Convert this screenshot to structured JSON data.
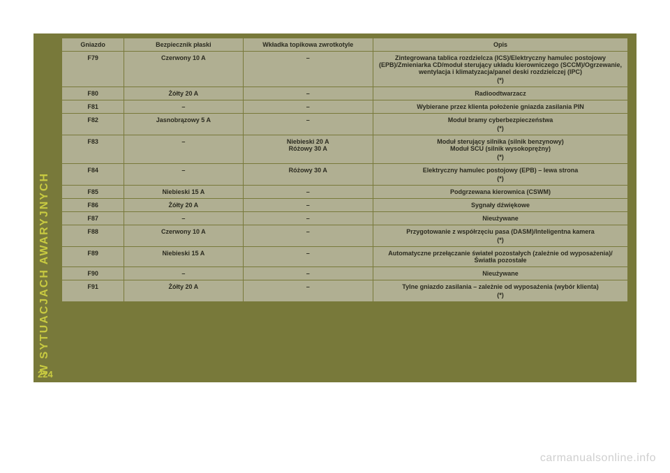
{
  "sidebar_label": "W SYTUACJACH AWARYJNYCH",
  "page_number": "224",
  "footer": "carmanualsonline.info",
  "colors": {
    "frame_bg": "#78793a",
    "table_bg": "#b0af92",
    "accent_text": "#c8ca41",
    "footer_text": "#cfcfcf",
    "cell_text": "#2a2a1f"
  },
  "table": {
    "headers": [
      "Gniazdo",
      "Bezpiecznik płaski",
      "Wkładka topikowa zwrotkotyle",
      "Opis"
    ],
    "rows": [
      {
        "g": "F79",
        "b": "Czerwony 10 A",
        "w": "–",
        "o": "Zintegrowana tablica rozdzielcza (ICS)/Elektryczny hamulec postojowy (EPB)/Zmieniarka CD/moduł sterujący układu kierowniczego (SCCM)/Ogrzewanie, wentylacja i klimatyzacja/panel deski rozdzielczej (IPC)",
        "star": true
      },
      {
        "g": "F80",
        "b": "Żółty 20 A",
        "w": "–",
        "o": "Radioodtwarzacz"
      },
      {
        "g": "F81",
        "b": "–",
        "w": "–",
        "o": "Wybierane przez klienta położenie gniazda zasilania PIN"
      },
      {
        "g": "F82",
        "b": "Jasnobrązowy 5 A",
        "w": "–",
        "o": "Moduł bramy cyberbezpieczeństwa",
        "star": true
      },
      {
        "g": "F83",
        "b": "–",
        "w": "Niebieski 20 A\nRóżowy 30 A",
        "o": "Moduł sterujący silnika (silnik benzynowy)\nModuł SCU (silnik wysokoprężny)",
        "star": true
      },
      {
        "g": "F84",
        "b": "–",
        "w": "Różowy 30 A",
        "o": "Elektryczny hamulec postojowy (EPB) – lewa strona",
        "star": true
      },
      {
        "g": "F85",
        "b": "Niebieski 15 A",
        "w": "–",
        "o": "Podgrzewana kierownica (CSWM)"
      },
      {
        "g": "F86",
        "b": "Żółty 20 A",
        "w": "–",
        "o": "Sygnały dźwiękowe"
      },
      {
        "g": "F87",
        "b": "–",
        "w": "–",
        "o": "Nieużywane"
      },
      {
        "g": "F88",
        "b": "Czerwony 10 A",
        "w": "–",
        "o": "Przygotowanie z współrzęciu pasa (DASM)/Inteligentna kamera",
        "star": true
      },
      {
        "g": "F89",
        "b": "Niebieski 15 A",
        "w": "–",
        "o": "Automatyczne przełączanie świateł pozostałych (zależnie od wyposażenia)/Światła pozostałe"
      },
      {
        "g": "F90",
        "b": "–",
        "w": "–",
        "o": "Nieużywane"
      },
      {
        "g": "F91",
        "b": "Żółty 20 A",
        "w": "–",
        "o": "Tylne gniazdo zasilania – zależnie od wyposażenia (wybór klienta)",
        "star": true
      }
    ]
  }
}
